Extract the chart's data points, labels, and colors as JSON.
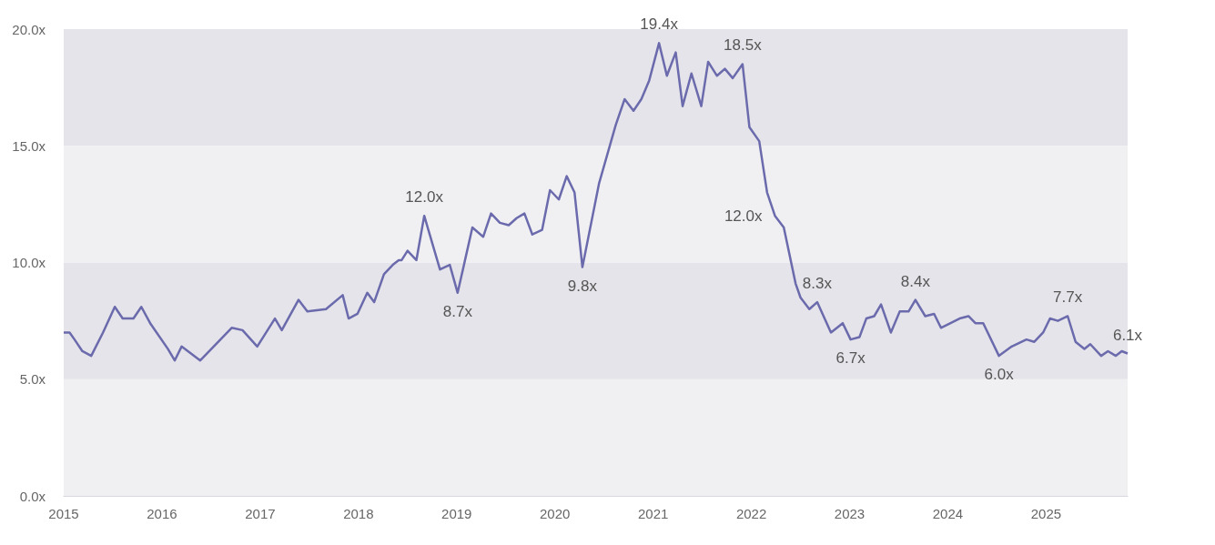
{
  "chart_data": {
    "type": "line",
    "color": "#6a6aac",
    "marker": "none",
    "grid": false,
    "xlim": [
      2015,
      2025.83
    ],
    "xticks": [
      2015,
      2016,
      2017,
      2018,
      2019,
      2020,
      2021,
      2022,
      2023,
      2024,
      2025
    ],
    "ylim": [
      0,
      20
    ],
    "yticks": [
      {
        "value": 0,
        "label": "0.0x"
      },
      {
        "value": 5,
        "label": "5.0x"
      },
      {
        "value": 10,
        "label": "10.0x"
      },
      {
        "value": 15,
        "label": "15.0x"
      },
      {
        "value": 20,
        "label": "20.0x"
      }
    ],
    "bands": [
      {
        "axis": "y",
        "from": 0,
        "to": 5,
        "color": "#f0f0f3"
      },
      {
        "axis": "y",
        "from": 5,
        "to": 10,
        "color": "#e5e4ea"
      },
      {
        "axis": "y",
        "from": 10,
        "to": 15,
        "color": "#f0f0f3"
      },
      {
        "axis": "y",
        "from": 15,
        "to": 20,
        "color": "#e5e4ea"
      }
    ],
    "x": [
      2015.0,
      2015.06,
      2015.11,
      2015.19,
      2015.28,
      2015.4,
      2015.52,
      2015.6,
      2015.71,
      2015.79,
      2015.88,
      2016.06,
      2016.13,
      2016.2,
      2016.39,
      2016.71,
      2016.82,
      2016.97,
      2017.15,
      2017.22,
      2017.39,
      2017.48,
      2017.67,
      2017.84,
      2017.9,
      2017.99,
      2018.09,
      2018.16,
      2018.26,
      2018.35,
      2018.41,
      2018.44,
      2018.5,
      2018.59,
      2018.67,
      2018.83,
      2018.93,
      2019.01,
      2019.16,
      2019.27,
      2019.35,
      2019.44,
      2019.53,
      2019.61,
      2019.69,
      2019.77,
      2019.87,
      2019.95,
      2020.04,
      2020.12,
      2020.2,
      2020.28,
      2020.45,
      2020.62,
      2020.71,
      2020.8,
      2020.88,
      2020.96,
      2021.06,
      2021.14,
      2021.23,
      2021.3,
      2021.39,
      2021.49,
      2021.56,
      2021.65,
      2021.73,
      2021.81,
      2021.91,
      2021.98,
      2022.08,
      2022.16,
      2022.24,
      2022.33,
      2022.45,
      2022.5,
      2022.59,
      2022.67,
      2022.81,
      2022.93,
      2023.01,
      2023.1,
      2023.17,
      2023.25,
      2023.32,
      2023.42,
      2023.51,
      2023.6,
      2023.67,
      2023.77,
      2023.86,
      2023.93,
      2024.12,
      2024.21,
      2024.28,
      2024.36,
      2024.52,
      2024.65,
      2024.8,
      2024.88,
      2024.97,
      2025.04,
      2025.12,
      2025.22,
      2025.3,
      2025.39,
      2025.45,
      2025.56,
      2025.63,
      2025.71,
      2025.77,
      2025.83
    ],
    "values": [
      7.0,
      7.0,
      6.7,
      6.2,
      6.0,
      7.0,
      8.1,
      7.6,
      7.6,
      8.1,
      7.4,
      6.3,
      5.8,
      6.4,
      5.8,
      7.2,
      7.1,
      6.4,
      7.6,
      7.1,
      8.4,
      7.9,
      8.0,
      8.6,
      7.6,
      7.8,
      8.7,
      8.3,
      9.5,
      9.9,
      10.1,
      10.1,
      10.5,
      10.1,
      12.0,
      9.7,
      9.9,
      8.7,
      11.5,
      11.1,
      12.1,
      11.7,
      11.6,
      11.9,
      12.1,
      11.2,
      11.4,
      13.1,
      12.7,
      13.7,
      13.0,
      9.8,
      13.4,
      15.9,
      17.0,
      16.5,
      17.0,
      17.8,
      19.4,
      18.0,
      19.0,
      16.7,
      18.1,
      16.7,
      18.6,
      18.0,
      18.3,
      17.9,
      18.5,
      15.8,
      15.2,
      13.0,
      12.0,
      11.5,
      9.1,
      8.5,
      8.0,
      8.3,
      7.0,
      7.4,
      6.7,
      6.8,
      7.6,
      7.7,
      8.2,
      7.0,
      7.9,
      7.9,
      8.4,
      7.7,
      7.8,
      7.2,
      7.6,
      7.7,
      7.4,
      7.4,
      6.0,
      6.4,
      6.7,
      6.6,
      7.0,
      7.6,
      7.5,
      7.7,
      6.6,
      6.3,
      6.5,
      6.0,
      6.2,
      6.0,
      6.2,
      6.1
    ],
    "value_labels": [
      null,
      null,
      null,
      null,
      null,
      null,
      null,
      null,
      null,
      null,
      null,
      null,
      null,
      null,
      null,
      null,
      null,
      null,
      null,
      null,
      null,
      null,
      null,
      null,
      null,
      null,
      null,
      null,
      null,
      null,
      null,
      null,
      null,
      null,
      "12.0x",
      null,
      null,
      "8.7x",
      null,
      null,
      null,
      null,
      null,
      null,
      null,
      null,
      null,
      null,
      null,
      null,
      null,
      "9.8x",
      null,
      null,
      null,
      null,
      null,
      null,
      "19.4x",
      null,
      null,
      null,
      null,
      null,
      null,
      null,
      null,
      null,
      "18.5x",
      null,
      null,
      null,
      "12.0x",
      null,
      null,
      null,
      null,
      "8.3x",
      null,
      null,
      "6.7x",
      null,
      null,
      null,
      null,
      null,
      null,
      null,
      "8.4x",
      null,
      null,
      null,
      null,
      null,
      null,
      null,
      "6.0x",
      null,
      null,
      null,
      null,
      null,
      null,
      "7.7x",
      null,
      null,
      null,
      null,
      null,
      null,
      null,
      "6.1x"
    ]
  }
}
